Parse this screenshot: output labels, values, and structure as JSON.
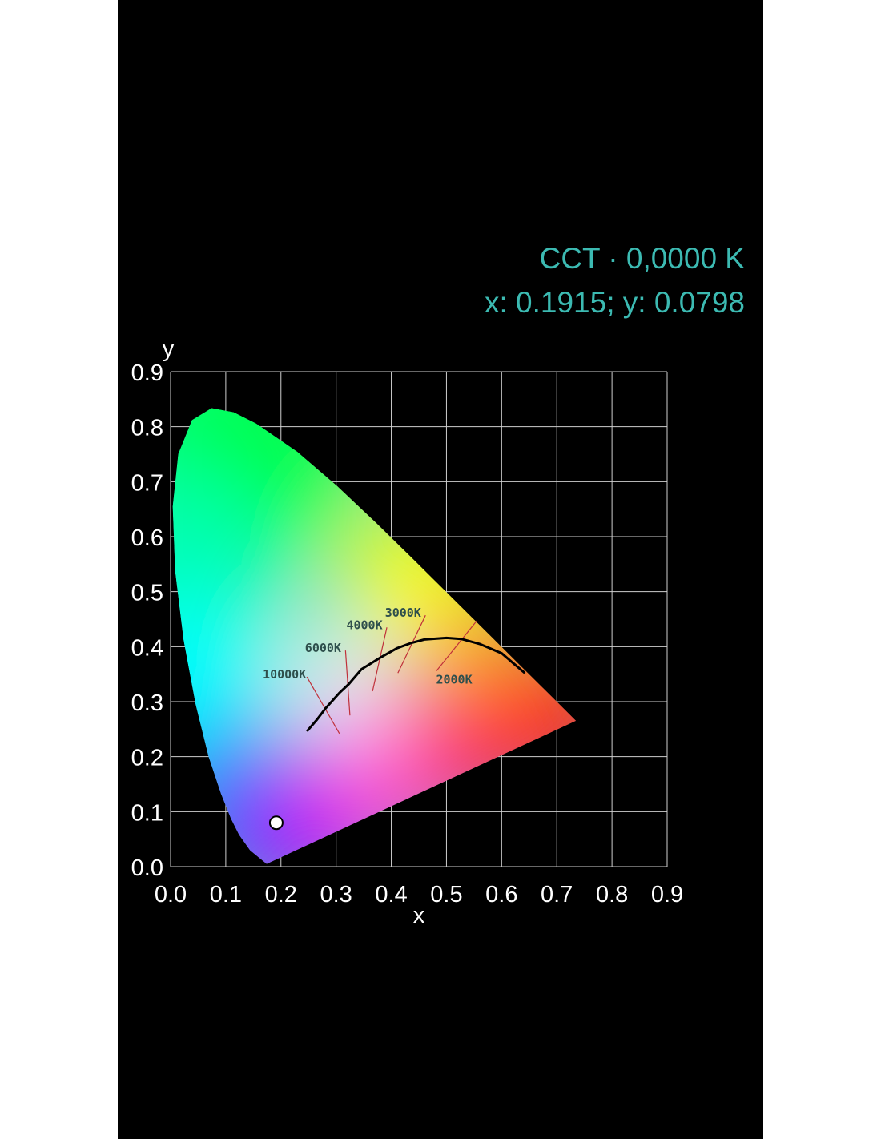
{
  "header": {
    "cct_text": "CCT · 0,0000 K",
    "coords_text": "x: 0.1915; y: 0.0798",
    "text_color": "#3cbab2"
  },
  "chart_data": {
    "type": "scatter",
    "title": "",
    "xlabel": "x",
    "ylabel": "y",
    "xlim": [
      0.0,
      0.9
    ],
    "ylim": [
      0.0,
      0.9
    ],
    "xticks": [
      "0.0",
      "0.1",
      "0.2",
      "0.3",
      "0.4",
      "0.5",
      "0.6",
      "0.7",
      "0.8",
      "0.9"
    ],
    "yticks": [
      "0.0",
      "0.1",
      "0.2",
      "0.3",
      "0.4",
      "0.5",
      "0.6",
      "0.7",
      "0.8",
      "0.9"
    ],
    "grid": true,
    "background": "#000000",
    "spectral_locus": [
      [
        0.1741,
        0.005
      ],
      [
        0.144,
        0.0297
      ],
      [
        0.1241,
        0.0578
      ],
      [
        0.1096,
        0.0868
      ],
      [
        0.0913,
        0.1327
      ],
      [
        0.0687,
        0.2007
      ],
      [
        0.0454,
        0.295
      ],
      [
        0.0235,
        0.4127
      ],
      [
        0.0082,
        0.5384
      ],
      [
        0.0039,
        0.6548
      ],
      [
        0.0139,
        0.7502
      ],
      [
        0.0389,
        0.812
      ],
      [
        0.0743,
        0.8338
      ],
      [
        0.1142,
        0.8262
      ],
      [
        0.1547,
        0.8059
      ],
      [
        0.2296,
        0.7543
      ],
      [
        0.3016,
        0.6923
      ],
      [
        0.3731,
        0.6245
      ],
      [
        0.4441,
        0.5547
      ],
      [
        0.5125,
        0.4866
      ],
      [
        0.5752,
        0.4242
      ],
      [
        0.627,
        0.3725
      ],
      [
        0.6915,
        0.3083
      ],
      [
        0.7347,
        0.2653
      ]
    ],
    "planckian_locus": [
      [
        0.247,
        0.246
      ],
      [
        0.265,
        0.267
      ],
      [
        0.281,
        0.288
      ],
      [
        0.306,
        0.316
      ],
      [
        0.323,
        0.332
      ],
      [
        0.346,
        0.359
      ],
      [
        0.38,
        0.38
      ],
      [
        0.41,
        0.397
      ],
      [
        0.437,
        0.407
      ],
      [
        0.46,
        0.413
      ],
      [
        0.5,
        0.416
      ],
      [
        0.527,
        0.414
      ],
      [
        0.56,
        0.405
      ],
      [
        0.6,
        0.388
      ],
      [
        0.642,
        0.352
      ]
    ],
    "isotherms": [
      {
        "label": "10000K",
        "from": [
          0.247,
          0.345
        ],
        "to": [
          0.306,
          0.242
        ]
      },
      {
        "label": "6000K",
        "from": [
          0.317,
          0.393
        ],
        "to": [
          0.325,
          0.275
        ]
      },
      {
        "label": "4000K",
        "from": [
          0.392,
          0.435
        ],
        "to": [
          0.366,
          0.319
        ]
      },
      {
        "label": "3000K",
        "from": [
          0.462,
          0.457
        ],
        "to": [
          0.412,
          0.352
        ]
      },
      {
        "label": "2000K",
        "from": [
          0.555,
          0.447
        ],
        "to": [
          0.482,
          0.356
        ]
      }
    ],
    "points": [
      {
        "x": 0.1915,
        "y": 0.0798
      }
    ]
  }
}
